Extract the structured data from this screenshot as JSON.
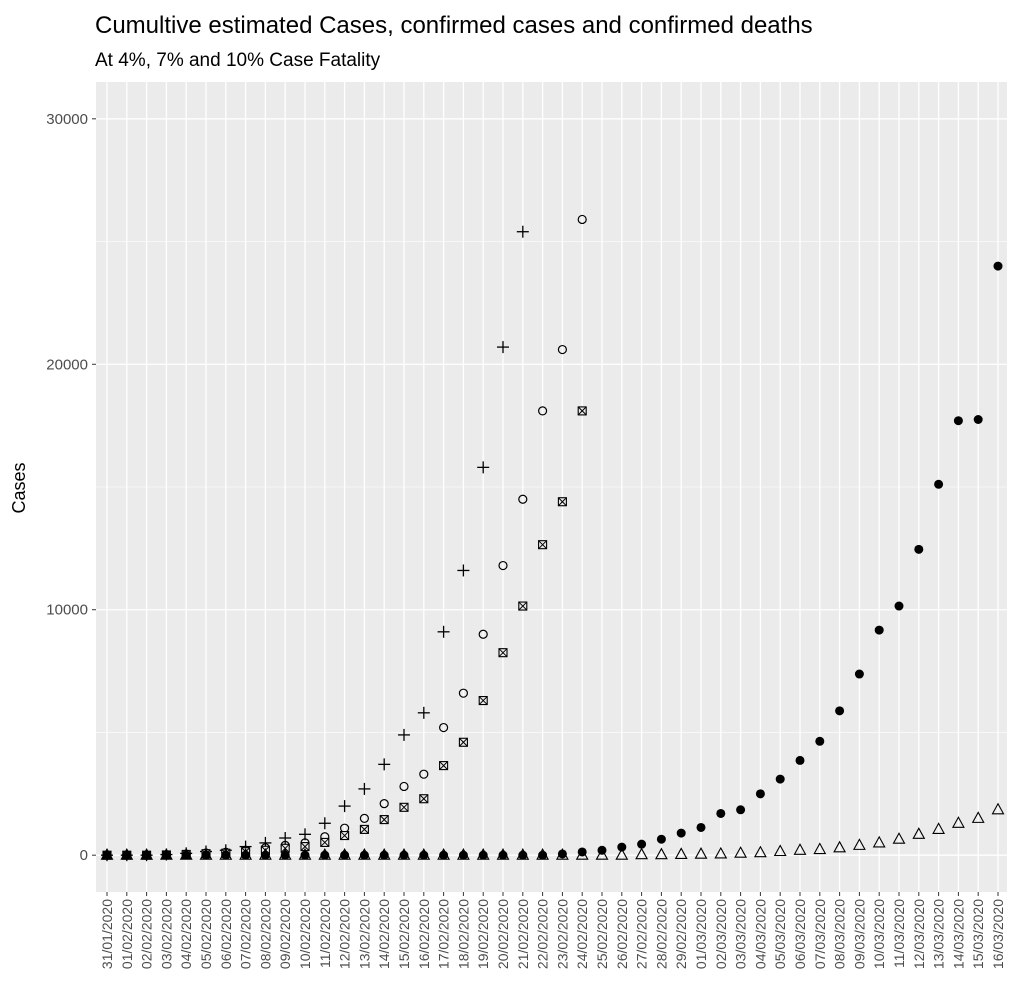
{
  "chart_data": {
    "type": "scatter",
    "title": "Cumultive estimated Cases, confirmed cases and confirmed deaths",
    "subtitle": "At 4%, 7% and 10% Case Fatality",
    "ylabel": "Cases",
    "xlabel": "",
    "ylim": [
      -1500,
      31500
    ],
    "yticks": [
      0,
      10000,
      20000,
      30000
    ],
    "ytick_labels": [
      "0",
      "10000",
      "20000",
      "30000"
    ],
    "grid": true,
    "legend": "none",
    "background": "#ebebeb",
    "x": [
      "31/01/2020",
      "01/02/2020",
      "02/02/2020",
      "03/02/2020",
      "04/02/2020",
      "05/02/2020",
      "06/02/2020",
      "07/02/2020",
      "08/02/2020",
      "09/02/2020",
      "10/02/2020",
      "11/02/2020",
      "12/02/2020",
      "13/02/2020",
      "14/02/2020",
      "15/02/2020",
      "16/02/2020",
      "17/02/2020",
      "18/02/2020",
      "19/02/2020",
      "20/02/2020",
      "21/02/2020",
      "22/02/2020",
      "23/02/2020",
      "24/02/2020",
      "25/02/2020",
      "26/02/2020",
      "27/02/2020",
      "28/02/2020",
      "29/02/2020",
      "01/03/2020",
      "02/03/2020",
      "03/03/2020",
      "04/03/2020",
      "05/03/2020",
      "06/03/2020",
      "07/03/2020",
      "08/03/2020",
      "09/03/2020",
      "10/03/2020",
      "11/03/2020",
      "12/03/2020",
      "13/03/2020",
      "14/03/2020",
      "15/03/2020",
      "16/03/2020"
    ],
    "series": [
      {
        "marker": "plus",
        "values": [
          0,
          0,
          0,
          25,
          75,
          150,
          200,
          350,
          500,
          700,
          850,
          1300,
          2000,
          2700,
          3700,
          4900,
          5800,
          9100,
          11600,
          15800,
          20700,
          25400,
          null,
          null,
          null,
          null,
          null,
          null,
          null,
          null,
          null,
          null,
          null,
          null,
          null,
          null,
          null,
          null,
          null,
          null,
          null,
          null,
          null,
          null,
          null,
          null
        ]
      },
      {
        "marker": "circle-open",
        "values": [
          0,
          0,
          0,
          15,
          45,
          90,
          120,
          200,
          300,
          400,
          500,
          750,
          1100,
          1500,
          2100,
          2800,
          3300,
          5200,
          6600,
          9000,
          11800,
          14500,
          18100,
          20600,
          25900,
          null,
          null,
          null,
          null,
          null,
          null,
          null,
          null,
          null,
          null,
          null,
          null,
          null,
          null,
          null,
          null,
          null,
          null,
          null,
          null,
          null
        ]
      },
      {
        "marker": "square-cross",
        "values": [
          0,
          0,
          0,
          10,
          30,
          60,
          80,
          140,
          200,
          280,
          350,
          520,
          800,
          1050,
          1450,
          1950,
          2300,
          3650,
          4600,
          6300,
          8250,
          10150,
          12650,
          14400,
          18100,
          null,
          null,
          null,
          null,
          null,
          null,
          null,
          null,
          null,
          null,
          null,
          null,
          null,
          null,
          null,
          null,
          null,
          null,
          null,
          null,
          null
        ]
      },
      {
        "marker": "circle-filled",
        "values": [
          0,
          0,
          0,
          0,
          0,
          0,
          0,
          0,
          0,
          0,
          0,
          0,
          0,
          0,
          0,
          0,
          0,
          0,
          0,
          0,
          0,
          0,
          0,
          50,
          130,
          200,
          330,
          450,
          650,
          900,
          1130,
          1700,
          1850,
          2500,
          3100,
          3860,
          4640,
          5880,
          7380,
          9170,
          10150,
          12460,
          15110,
          17700,
          17750,
          24000
        ]
      },
      {
        "marker": "triangle-open",
        "values": [
          0,
          0,
          0,
          0,
          0,
          0,
          0,
          0,
          0,
          0,
          0,
          0,
          0,
          0,
          0,
          0,
          0,
          0,
          0,
          0,
          0,
          0,
          0,
          0,
          0,
          0,
          0,
          20,
          20,
          30,
          40,
          50,
          80,
          100,
          150,
          200,
          230,
          300,
          400,
          500,
          650,
          850,
          1050,
          1300,
          1500,
          1850
        ]
      }
    ]
  }
}
